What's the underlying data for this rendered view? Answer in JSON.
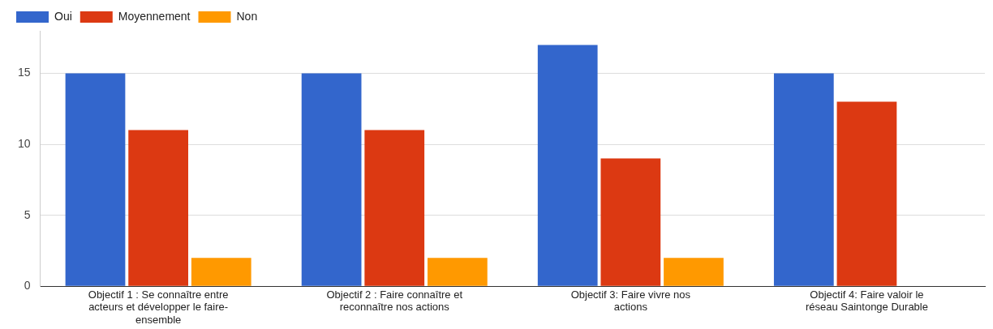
{
  "chart_data": {
    "type": "bar",
    "categories": [
      "Objectif 1 : Se connaître entre acteurs et développer le faire-ensemble",
      "Objectif 2 : Faire connaître et reconnaître nos actions",
      "Objectif 3: Faire vivre nos actions",
      "Objectif 4: Faire valoir le réseau Saintonge Durable"
    ],
    "series": [
      {
        "name": "Oui",
        "color": "#3366cc",
        "values": [
          15,
          15,
          17,
          15
        ]
      },
      {
        "name": "Moyennement",
        "color": "#dc3912",
        "values": [
          11,
          11,
          9,
          13
        ]
      },
      {
        "name": "Non",
        "color": "#ff9900",
        "values": [
          2,
          2,
          2,
          0
        ]
      }
    ],
    "ylim": [
      0,
      18
    ],
    "yticks": [
      0,
      5,
      10,
      15
    ],
    "grid": "y",
    "legend": "top left"
  }
}
